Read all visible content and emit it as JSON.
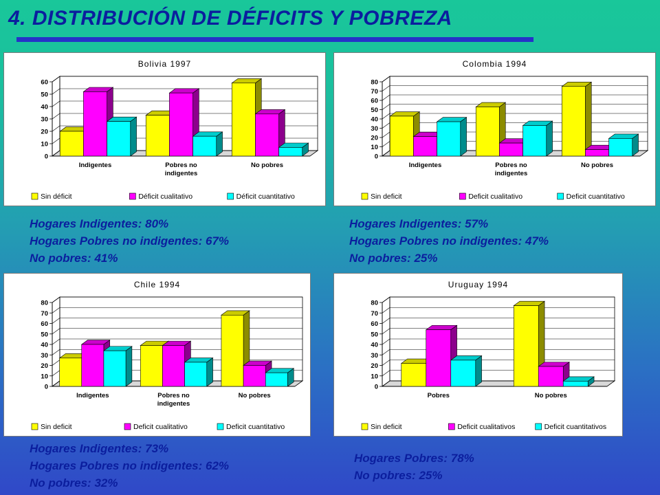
{
  "page": {
    "title": "4. DISTRIBUCIÓN DE DÉFICITS Y POBREZA"
  },
  "colors": {
    "title_text": "#0b1e9e",
    "title_bar": "#2633c8",
    "series_1": "#ffff00",
    "series_2": "#ff00ff",
    "series_3": "#00ffff"
  },
  "chart_data": [
    {
      "type": "bar",
      "title": "Bolivia 1997",
      "categories": [
        "Indigentes",
        "Pobres no indigentes",
        "No pobres"
      ],
      "series": [
        {
          "name": "Sin déficit",
          "values": [
            20,
            33,
            59
          ]
        },
        {
          "name": "Déficit cualitativo",
          "values": [
            52,
            51,
            34
          ]
        },
        {
          "name": "Déficit cuantitativo",
          "values": [
            28,
            16,
            7
          ]
        }
      ],
      "ylim": [
        0,
        60
      ],
      "yticks": [
        0,
        10,
        20,
        30,
        40,
        50,
        60
      ],
      "grid": true,
      "legend": "bottom"
    },
    {
      "type": "bar",
      "title": "Colombia 1994",
      "categories": [
        "Indigentes",
        "Pobres no indigentes",
        "No pobres"
      ],
      "series": [
        {
          "name": "Sin deficit",
          "values": [
            43,
            53,
            75
          ]
        },
        {
          "name": "Deficit cualitativo",
          "values": [
            21,
            14,
            7
          ]
        },
        {
          "name": "Deficit cuantitativo",
          "values": [
            37,
            33,
            19
          ]
        }
      ],
      "ylim": [
        0,
        80
      ],
      "yticks": [
        0,
        10,
        20,
        30,
        40,
        50,
        60,
        70,
        80
      ],
      "grid": true,
      "legend": "bottom"
    },
    {
      "type": "bar",
      "title": "Chile 1994",
      "categories": [
        "Indigentes",
        "Pobres no indigentes",
        "No pobres"
      ],
      "series": [
        {
          "name": "Sin deficit",
          "values": [
            27,
            39,
            68
          ]
        },
        {
          "name": "Deficit cualitativo",
          "values": [
            40,
            39,
            20
          ]
        },
        {
          "name": "Deficit cuantitativo",
          "values": [
            34,
            23,
            13
          ]
        }
      ],
      "ylim": [
        0,
        80
      ],
      "yticks": [
        0,
        10,
        20,
        30,
        40,
        50,
        60,
        70,
        80
      ],
      "grid": true,
      "legend": "bottom"
    },
    {
      "type": "bar",
      "title": "Uruguay 1994",
      "categories": [
        "Pobres",
        "No pobres"
      ],
      "series": [
        {
          "name": "Sin deficit",
          "values": [
            22,
            77
          ]
        },
        {
          "name": "Deficit cualitativos",
          "values": [
            54,
            19
          ]
        },
        {
          "name": "Deficit cuantitativos",
          "values": [
            25,
            5
          ]
        }
      ],
      "ylim": [
        0,
        80
      ],
      "yticks": [
        0,
        10,
        20,
        30,
        40,
        50,
        60,
        70,
        80
      ],
      "grid": true,
      "legend": "bottom"
    }
  ],
  "captions": [
    {
      "lines": [
        "Hogares Indigentes: 80%",
        "Hogares Pobres no indigentes: 67%",
        "No pobres: 41%"
      ]
    },
    {
      "lines": [
        "Hogares Indigentes: 57%",
        "Hogares Pobres no indigentes: 47%",
        "No pobres: 25%"
      ]
    },
    {
      "lines": [
        "Hogares Indigentes: 73%",
        "Hogares Pobres no indigentes: 62%",
        "No pobres: 32%"
      ]
    },
    {
      "lines": [
        "Hogares Pobres: 78%",
        "No pobres: 25%"
      ]
    }
  ]
}
